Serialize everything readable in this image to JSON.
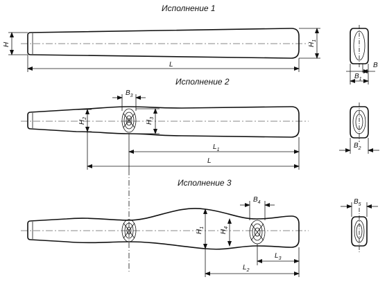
{
  "titles": {
    "v1": "Исполнение 1",
    "v2": "Исполнение 2",
    "v3": "Исполнение 3"
  },
  "dims": {
    "H": "H",
    "H1": "H",
    "H1_sub": "1",
    "L": "L",
    "B": "B",
    "B1": "B",
    "B1_sub": "1",
    "B2": "B",
    "B2_sub": "2",
    "B3": "B",
    "B3_sub": "3",
    "B4": "B",
    "B4_sub": "4",
    "B5": "B",
    "B5_sub": "5",
    "H2": "H",
    "H2_sub": "2",
    "H3": "H",
    "H3_sub": "3",
    "L1": "L",
    "L1_sub": "1",
    "L2": "L",
    "L2_sub": "2",
    "L3": "L",
    "L3_sub": "3",
    "H4": "H",
    "H4_sub": "4"
  }
}
